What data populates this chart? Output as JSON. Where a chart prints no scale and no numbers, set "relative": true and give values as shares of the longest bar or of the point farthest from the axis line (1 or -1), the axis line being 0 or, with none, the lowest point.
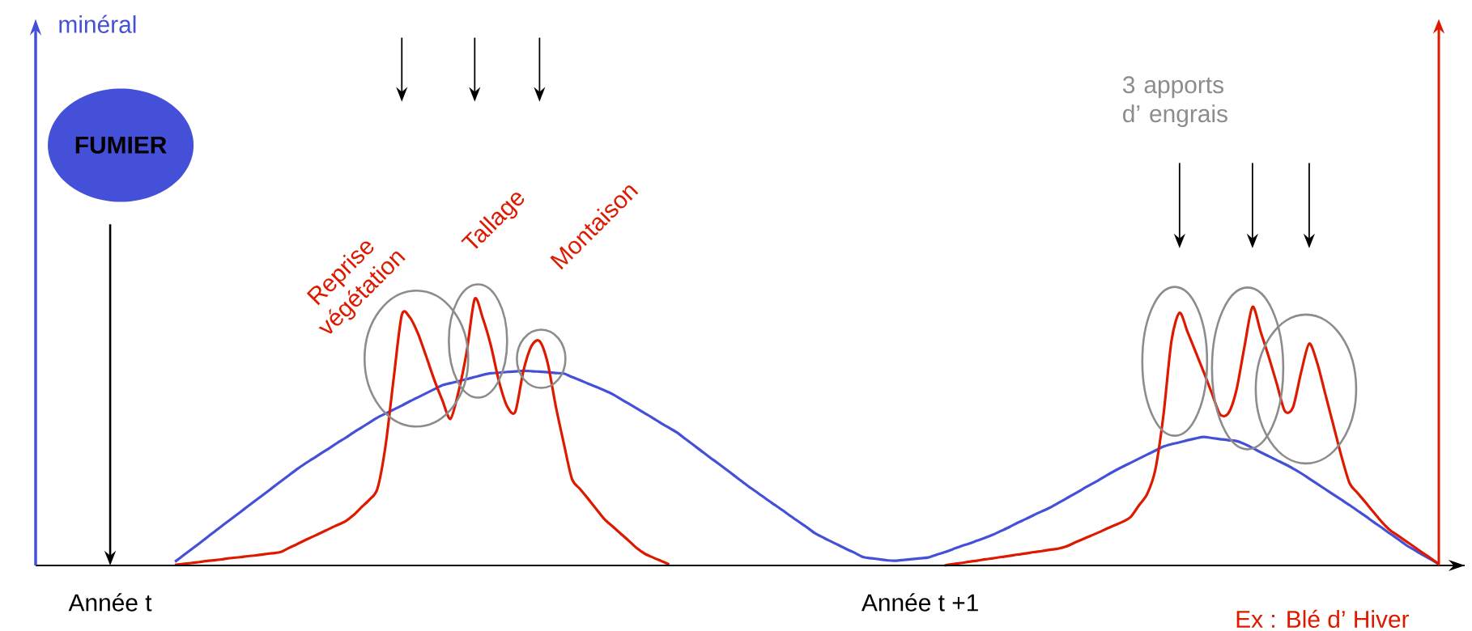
{
  "chart_data": {
    "type": "line",
    "relative": true,
    "categories": [
      "Année t",
      null,
      null,
      null,
      null,
      null,
      null,
      null,
      null,
      null,
      null,
      null,
      null,
      null,
      null,
      null,
      null,
      null,
      null,
      null,
      null,
      null,
      null,
      null,
      null,
      null,
      null,
      null,
      null,
      null,
      null,
      null,
      null,
      null,
      null,
      null,
      null,
      null,
      null,
      null,
      null,
      null,
      null,
      null,
      null,
      null,
      null,
      null,
      null,
      null,
      null,
      null,
      null,
      null,
      null,
      null,
      null,
      null,
      null,
      null,
      null,
      null,
      null,
      null,
      null,
      null,
      null,
      null,
      null,
      null,
      null,
      null,
      null,
      null,
      null,
      null,
      null,
      null,
      null,
      null,
      null,
      null,
      null,
      null,
      null,
      null,
      null,
      null,
      null,
      null,
      null,
      null,
      null,
      null,
      null,
      null,
      null,
      null,
      null,
      null,
      "Année t +1",
      null,
      null,
      null,
      null,
      null,
      null,
      null,
      null,
      null,
      null,
      null,
      null,
      null,
      null,
      null,
      null,
      null,
      null,
      null,
      null,
      null,
      null,
      null,
      null,
      null,
      null,
      null,
      null,
      null,
      null,
      null,
      null,
      null,
      null,
      null,
      null,
      null,
      null,
      null,
      null,
      null,
      null,
      null,
      null,
      null,
      null,
      null,
      null,
      null,
      null,
      null,
      null,
      null,
      null,
      null,
      null,
      null,
      null,
      null,
      null,
      null,
      null,
      null,
      null,
      null
    ],
    "annotations": [
      "FUMIER",
      "Reprise végétation",
      "Tallage",
      "Montaison",
      "3 apports d’ engrais",
      "Ex : Blé d’ Hiver",
      "minéral"
    ],
    "series": [
      {
        "color": "#4450d8",
        "values": [
          null,
          null,
          null,
          null,
          null,
          null,
          null,
          null,
          0.014,
          0.037,
          0.06,
          0.083,
          0.106,
          0.13,
          0.153,
          0.176,
          0.199,
          0.222,
          0.245,
          0.268,
          0.291,
          0.314,
          0.337,
          0.36,
          0.381,
          0.4,
          0.42,
          0.439,
          0.459,
          0.478,
          0.498,
          0.517,
          0.536,
          0.555,
          0.57,
          0.585,
          0.6,
          0.616,
          0.631,
          0.646,
          0.661,
          0.676,
          0.684,
          0.691,
          0.699,
          0.707,
          0.715,
          0.721,
          0.723,
          0.726,
          0.728,
          0.73,
          0.729,
          0.727,
          0.725,
          0.722,
          0.72,
          0.707,
          0.695,
          0.682,
          0.67,
          0.657,
          0.643,
          0.625,
          0.607,
          0.589,
          0.571,
          0.553,
          0.534,
          0.516,
          0.498,
          0.475,
          0.452,
          0.429,
          0.406,
          0.384,
          0.361,
          0.338,
          0.315,
          0.292,
          0.271,
          0.249,
          0.228,
          0.207,
          0.185,
          0.164,
          0.143,
          0.121,
          0.105,
          0.09,
          0.075,
          0.06,
          0.046,
          0.031,
          0.027,
          0.023,
          0.019,
          0.018,
          0.021,
          0.024,
          0.027,
          0.03,
          0.04,
          0.05,
          0.061,
          0.072,
          0.082,
          0.093,
          0.104,
          0.116,
          0.13,
          0.144,
          0.16,
          0.174,
          0.189,
          0.203,
          0.217,
          0.234,
          0.251,
          0.268,
          0.286,
          0.303,
          0.32,
          0.338,
          0.355,
          0.371,
          0.386,
          0.401,
          0.416,
          0.431,
          0.446,
          0.455,
          0.462,
          0.47,
          0.477,
          0.482,
          0.478,
          0.474,
          0.47,
          0.467,
          0.456,
          0.441,
          0.425,
          0.41,
          0.395,
          0.38,
          0.364,
          0.346,
          0.326,
          0.306,
          0.286,
          0.266,
          0.246,
          0.226,
          0.205,
          0.184,
          0.162,
          0.141,
          0.119,
          0.098,
          0.076,
          0.058,
          0.04,
          0.023,
          0.005,
          null
        ]
      },
      {
        "color": "#dd1a00",
        "values": [
          null,
          null,
          null,
          null,
          null,
          null,
          null,
          null,
          0.002,
          0.006,
          0.009,
          0.013,
          0.017,
          0.02,
          0.024,
          0.028,
          0.031,
          0.035,
          0.038,
          0.042,
          0.046,
          0.05,
          0.065,
          0.079,
          0.094,
          0.108,
          0.122,
          0.137,
          0.151,
          0.165,
          0.188,
          0.218,
          0.247,
          0.289,
          0.451,
          0.703,
          0.94,
          0.93,
          0.87,
          0.785,
          0.697,
          0.62,
          0.55,
          0.652,
          0.8,
          1,
          0.927,
          0.824,
          0.69,
          0.597,
          0.576,
          0.729,
          0.823,
          0.842,
          0.76,
          0.598,
          0.457,
          0.325,
          0.287,
          0.25,
          0.212,
          0.174,
          0.147,
          0.12,
          0.093,
          0.065,
          0.044,
          0.03,
          0.017,
          0.004,
          null,
          null,
          null,
          null,
          null,
          null,
          null,
          null,
          null,
          null,
          null,
          null,
          null,
          null,
          null,
          null,
          null,
          null,
          null,
          null,
          null,
          null,
          null,
          null,
          null,
          null,
          null,
          null,
          null,
          null,
          null,
          null,
          null,
          null,
          null,
          null,
          null,
          null,
          null,
          null,
          null,
          null,
          null,
          null,
          null,
          null,
          null,
          null,
          null,
          null,
          null,
          null,
          null,
          null,
          null,
          null,
          null,
          null,
          null,
          null,
          null,
          null,
          null,
          null,
          null,
          null,
          null,
          null,
          null,
          null,
          null,
          null,
          null,
          null,
          null,
          null,
          null,
          null,
          null,
          null,
          null,
          null,
          null,
          null,
          null,
          null,
          null,
          null,
          null,
          null,
          null,
          null,
          null,
          null,
          null,
          null
        ]
      },
      {
        "color": "#dd1a00",
        "values": [
          null,
          null,
          null,
          null,
          null,
          null,
          null,
          null,
          null,
          null,
          null,
          null,
          null,
          null,
          null,
          null,
          null,
          null,
          null,
          null,
          null,
          null,
          null,
          null,
          null,
          null,
          null,
          null,
          null,
          null,
          null,
          null,
          null,
          null,
          null,
          null,
          null,
          null,
          null,
          null,
          null,
          null,
          null,
          null,
          null,
          null,
          null,
          null,
          null,
          null,
          null,
          null,
          null,
          null,
          null,
          null,
          null,
          null,
          null,
          null,
          null,
          null,
          null,
          null,
          null,
          null,
          null,
          null,
          null,
          null,
          null,
          null,
          null,
          null,
          null,
          null,
          null,
          null,
          null,
          null,
          null,
          null,
          null,
          null,
          null,
          null,
          null,
          null,
          null,
          null,
          null,
          null,
          null,
          null,
          null,
          null,
          null,
          null,
          null,
          null,
          null,
          null,
          null,
          0,
          0.005,
          0.009,
          0.014,
          0.018,
          0.023,
          0.027,
          0.032,
          0.036,
          0.041,
          0.045,
          0.05,
          0.054,
          0.059,
          0.063,
          0.071,
          0.085,
          0.098,
          0.111,
          0.124,
          0.138,
          0.151,
          0.164,
          0.183,
          0.226,
          0.268,
          0.358,
          0.561,
          0.842,
          0.948,
          0.875,
          0.8,
          0.724,
          0.645,
          0.567,
          0.57,
          0.655,
          0.819,
          0.97,
          0.878,
          0.784,
          0.682,
          0.579,
          0.593,
          0.724,
          0.832,
          0.759,
          0.642,
          0.525,
          0.408,
          0.308,
          0.271,
          0.235,
          0.198,
          0.162,
          0.132,
          0.111,
          0.09,
          0.069,
          0.048,
          0.027,
          0.006,
          null
        ]
      }
    ]
  }
}
